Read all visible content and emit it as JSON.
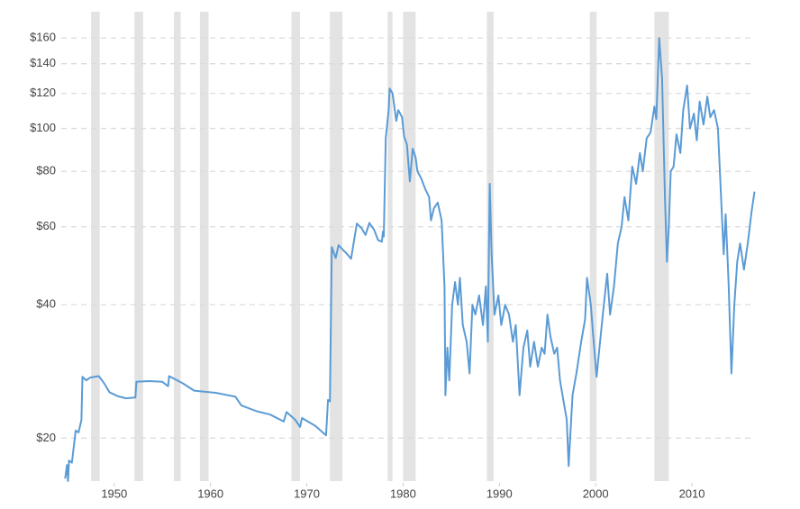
{
  "chart_data": {
    "type": "line",
    "log_scale": true,
    "grid": true,
    "color": "#5b9bd5",
    "shade_color": "#e3e3e3",
    "xlim": [
      1944.5,
      2017.2
    ],
    "xticks": [
      1950,
      1960,
      1970,
      1980,
      1990,
      2000,
      2010
    ],
    "ylim": [
      16,
      180
    ],
    "yticks": [
      {
        "value": 20,
        "label": "$20"
      },
      {
        "value": 40,
        "label": "$40"
      },
      {
        "value": 60,
        "label": "$60"
      },
      {
        "value": 80,
        "label": "$80"
      },
      {
        "value": 100,
        "label": "$100"
      },
      {
        "value": 120,
        "label": "$120"
      },
      {
        "value": 140,
        "label": "$140"
      },
      {
        "value": 160,
        "label": "$160"
      }
    ],
    "shaded_ranges": [
      [
        1947.6,
        1948.5
      ],
      [
        1952.1,
        1953.0
      ],
      [
        1956.2,
        1956.9
      ],
      [
        1958.9,
        1959.8
      ],
      [
        1968.4,
        1969.3
      ],
      [
        1972.4,
        1973.7
      ],
      [
        1978.4,
        1978.9
      ],
      [
        1980.0,
        1981.3
      ],
      [
        1988.7,
        1989.4
      ],
      [
        1999.4,
        2000.1
      ],
      [
        2006.1,
        2007.6
      ]
    ],
    "x": [
      1944.9,
      1945.1,
      1945.2,
      1945.3,
      1945.6,
      1946.0,
      1946.3,
      1946.6,
      1946.7,
      1947.1,
      1947.5,
      1948.4,
      1949.0,
      1949.5,
      1950.3,
      1951.2,
      1952.2,
      1952.3,
      1953.6,
      1955.0,
      1955.6,
      1955.7,
      1956.4,
      1957.1,
      1958.3,
      1960.6,
      1962.6,
      1963.2,
      1964.8,
      1966.2,
      1967.6,
      1967.9,
      1968.8,
      1969.3,
      1969.5,
      1970.9,
      1972.0,
      1972.2,
      1972.4,
      1972.6,
      1973.0,
      1973.3,
      1974.2,
      1974.6,
      1975.2,
      1975.7,
      1976.1,
      1976.5,
      1977.0,
      1977.4,
      1977.8,
      1977.9,
      1978.0,
      1978.2,
      1978.5,
      1978.6,
      1978.9,
      1979.3,
      1979.5,
      1979.9,
      1980.1,
      1980.4,
      1980.7,
      1981.0,
      1981.3,
      1981.5,
      1981.9,
      1982.3,
      1982.7,
      1982.9,
      1983.2,
      1983.6,
      1984.0,
      1984.3,
      1984.4,
      1984.6,
      1984.8,
      1985.1,
      1985.4,
      1985.7,
      1985.9,
      1986.2,
      1986.6,
      1986.9,
      1987.2,
      1987.5,
      1987.9,
      1988.3,
      1988.6,
      1988.8,
      1989.0,
      1989.2,
      1989.5,
      1989.9,
      1990.2,
      1990.6,
      1991.0,
      1991.4,
      1991.7,
      1992.1,
      1992.5,
      1992.9,
      1993.2,
      1993.6,
      1994.0,
      1994.4,
      1994.7,
      1995.0,
      1995.3,
      1995.7,
      1996.0,
      1996.3,
      1996.7,
      1997.0,
      1997.2,
      1997.6,
      1998.0,
      1998.5,
      1998.9,
      1999.1,
      1999.5,
      1999.7,
      2000.1,
      2000.4,
      2000.8,
      2001.2,
      2001.5,
      2001.9,
      2002.3,
      2002.7,
      2003.0,
      2003.4,
      2003.8,
      2004.2,
      2004.6,
      2004.9,
      2005.3,
      2005.7,
      2006.1,
      2006.3,
      2006.6,
      2006.9,
      2007.2,
      2007.4,
      2007.6,
      2007.8,
      2008.1,
      2008.4,
      2008.8,
      2009.1,
      2009.5,
      2009.8,
      2010.2,
      2010.5,
      2010.8,
      2011.2,
      2011.6,
      2011.9,
      2012.3,
      2012.7,
      2013.0,
      2013.3,
      2013.5,
      2013.8,
      2014.1,
      2014.4,
      2014.7,
      2015.0,
      2015.4,
      2015.8,
      2016.2,
      2016.5
    ],
    "values": [
      16.2,
      17.4,
      16.0,
      17.8,
      17.6,
      20.8,
      20.6,
      22.0,
      27.5,
      27.0,
      27.4,
      27.6,
      26.5,
      25.4,
      24.9,
      24.6,
      24.7,
      26.8,
      26.9,
      26.8,
      26.2,
      27.6,
      27.1,
      26.6,
      25.6,
      25.3,
      24.8,
      23.7,
      23.0,
      22.6,
      21.8,
      22.9,
      22.0,
      21.2,
      22.2,
      21.3,
      20.3,
      24.4,
      24.2,
      54,
      51,
      54.5,
      52,
      50.8,
      61,
      59.5,
      57.5,
      61.2,
      59,
      56,
      55.5,
      58.5,
      57,
      95,
      110,
      123,
      120,
      104,
      110,
      106,
      96,
      92,
      76,
      90,
      86,
      80,
      77,
      73,
      70,
      62,
      66,
      68,
      62,
      44,
      25,
      32,
      27,
      40,
      45,
      40,
      46,
      36,
      33,
      28,
      40,
      38,
      42,
      36,
      44,
      33,
      75,
      52,
      38,
      42,
      36,
      40,
      38,
      33,
      36,
      25,
      32,
      35,
      29,
      33,
      29,
      32,
      31,
      38,
      34,
      31,
      32,
      27,
      24,
      22,
      17.3,
      25,
      28,
      33,
      37,
      46,
      40,
      35,
      27.5,
      32,
      39,
      47,
      38,
      44,
      55,
      60,
      70,
      62,
      82,
      75,
      88,
      80,
      95,
      98,
      112,
      105,
      160,
      130,
      70,
      50,
      60,
      80,
      82,
      97,
      88,
      110,
      125,
      100,
      108,
      94,
      115,
      102,
      118,
      106,
      110,
      100,
      72,
      52,
      64,
      45,
      28,
      40,
      50,
      55,
      48,
      55,
      65,
      72
    ]
  }
}
